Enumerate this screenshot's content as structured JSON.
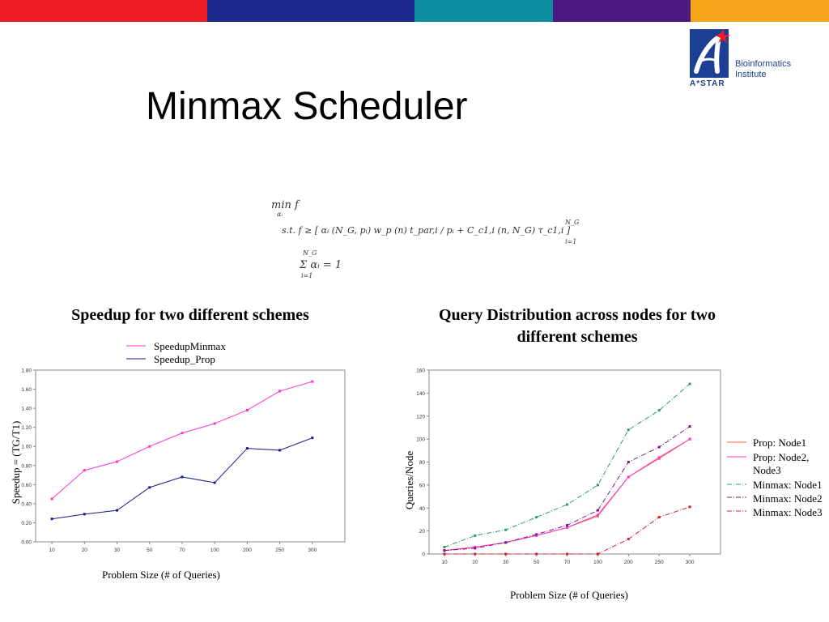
{
  "colors": {
    "bar": [
      "#ed1c24",
      "#1b2a8c",
      "#0b8fa0",
      "#4b1a80",
      "#f9a51a"
    ],
    "brand": "#1c3f94"
  },
  "logo": {
    "name": "Bioinformatics Institute",
    "line1": "Bioinformatics",
    "line2": "Institute",
    "sub": "A*STAR",
    "icon": "astar-logo-icon"
  },
  "slide": {
    "title": "Minmax Scheduler"
  },
  "formula": {
    "line1": "min f",
    "line1_sub": "αᵢ",
    "line2": "s.t.   f   ≥ [ αᵢ (N_G, pᵢ) w_p (n) t_par,i / pᵢ + C_c1,i (n, N_G) τ_c1,i ]",
    "line2_sup": "N_G",
    "line2_sub": "i=1",
    "line3": "Σ αᵢ = 1",
    "line3_sup": "N_G",
    "line3_sub": "i=1"
  },
  "chart_data": [
    {
      "type": "line",
      "title": "Speedup for two different schemes",
      "xlabel": "Problem Size (# of Queries)",
      "ylabel": "Speedup = (TG/T1)",
      "categories": [
        "10",
        "20",
        "30",
        "50",
        "70",
        "100",
        "200",
        "250",
        "300"
      ],
      "ylim": [
        0,
        1.8
      ],
      "yticks": [
        "0.00",
        "0.20",
        "0.40",
        "0.60",
        "0.80",
        "1.00",
        "1.20",
        "1.40",
        "1.60",
        "1.80"
      ],
      "legend_position": "top",
      "series": [
        {
          "name": "SpeedupMinmax",
          "color": "#ff33cc",
          "values": [
            0.45,
            0.75,
            0.84,
            1.0,
            1.14,
            1.24,
            1.38,
            1.58,
            1.68
          ]
        },
        {
          "name": "Speedup_Prop",
          "color": "#1a1a8c",
          "values": [
            0.24,
            0.29,
            0.33,
            0.57,
            0.68,
            0.62,
            0.98,
            0.96,
            1.09
          ]
        }
      ]
    },
    {
      "type": "line",
      "title": "Query Distribution across nodes for two different schemes",
      "xlabel": "Problem Size (# of Queries)",
      "ylabel": "Queries/Node",
      "categories": [
        "10",
        "20",
        "30",
        "50",
        "70",
        "100",
        "200",
        "250",
        "300"
      ],
      "ylim": [
        0,
        160
      ],
      "yticks": [
        "0",
        "20",
        "40",
        "60",
        "80",
        "100",
        "120",
        "140",
        "160"
      ],
      "legend_position": "right",
      "series": [
        {
          "name": "Prop: Node1",
          "color": "#ff6633",
          "dash": "",
          "values": [
            3,
            6,
            10,
            16,
            23,
            33,
            67,
            83,
            100
          ]
        },
        {
          "name": "Prop: Node2, Node3",
          "color": "#ff33cc",
          "dash": "",
          "values": [
            3,
            6,
            10,
            16,
            23,
            34,
            67,
            84,
            100
          ]
        },
        {
          "name": "Minmax: Node1",
          "color": "#2a9d6b",
          "dash": "6,2,1,2",
          "values": [
            6,
            16,
            21,
            32,
            43,
            60,
            108,
            125,
            148
          ]
        },
        {
          "name": "Minmax: Node2",
          "color": "#7a1a8c",
          "dash": "6,2,1,2",
          "values": [
            3,
            5,
            10,
            17,
            25,
            38,
            80,
            93,
            111
          ]
        },
        {
          "name": "Minmax: Node3",
          "color": "#cc2233",
          "dash": "6,2,1,2",
          "values": [
            0,
            0,
            0,
            0,
            0,
            0,
            13,
            32,
            41
          ]
        }
      ]
    }
  ]
}
